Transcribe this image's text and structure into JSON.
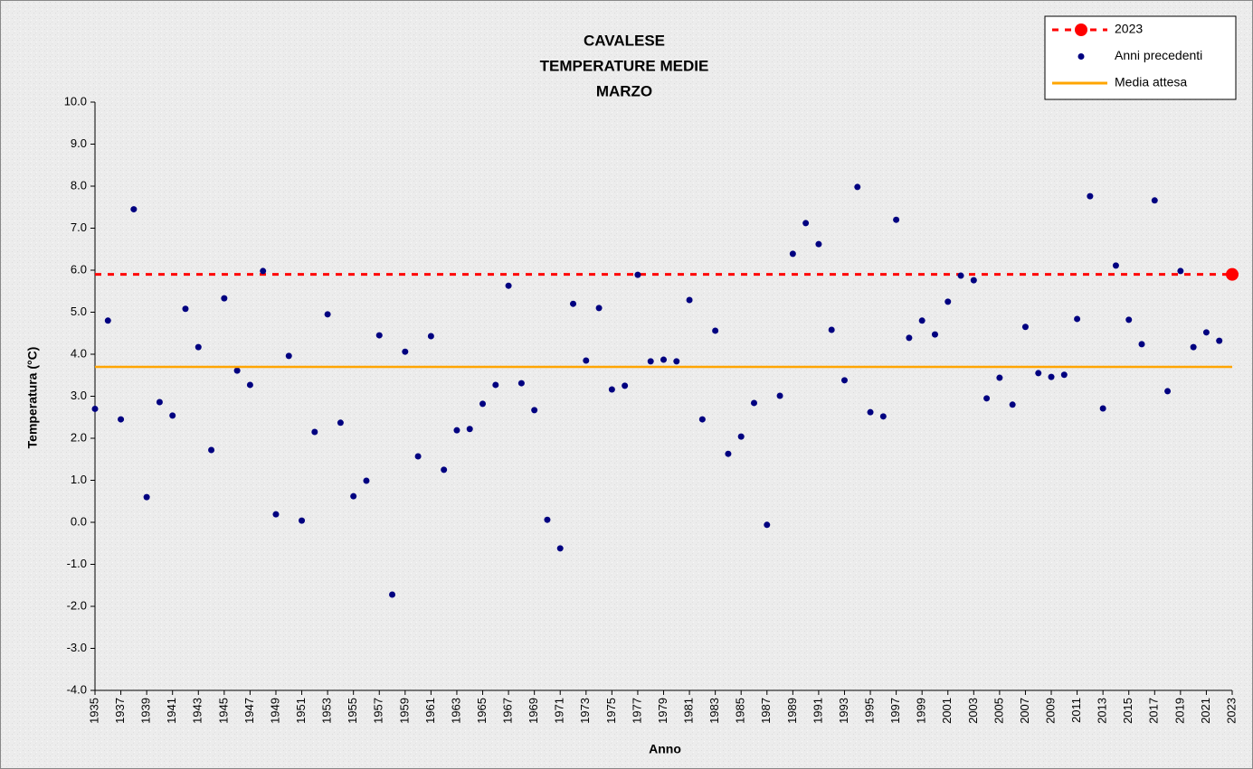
{
  "chart_data": {
    "type": "scatter",
    "title": [
      "CAVALESE",
      "TEMPERATURE MEDIE",
      "MARZO"
    ],
    "xlabel": "Anno",
    "ylabel": "Temperatura (°C)",
    "xlim": [
      1935,
      2023
    ],
    "xticks": [
      1935,
      1937,
      1939,
      1941,
      1943,
      1945,
      1947,
      1949,
      1951,
      1953,
      1955,
      1957,
      1959,
      1961,
      1963,
      1965,
      1967,
      1969,
      1971,
      1973,
      1975,
      1977,
      1979,
      1981,
      1983,
      1985,
      1987,
      1989,
      1991,
      1993,
      1995,
      1997,
      1999,
      2001,
      2003,
      2005,
      2007,
      2009,
      2011,
      2013,
      2015,
      2017,
      2019,
      2021,
      2023
    ],
    "ylim": [
      -4,
      10
    ],
    "yticks": [
      {
        "value": 10,
        "label": "10.0"
      },
      {
        "value": 9,
        "label": "9.0"
      },
      {
        "value": 8,
        "label": "8.0"
      },
      {
        "value": 7,
        "label": "7.0"
      },
      {
        "value": 6,
        "label": "6.0"
      },
      {
        "value": 5,
        "label": "5.0"
      },
      {
        "value": 4,
        "label": "4.0"
      },
      {
        "value": 3,
        "label": "3.0"
      },
      {
        "value": 2,
        "label": "2.0"
      },
      {
        "value": 1,
        "label": "1.0"
      },
      {
        "value": 0,
        "label": "0.0"
      },
      {
        "value": -1,
        "label": "-1.0"
      },
      {
        "value": -2,
        "label": "-2.0"
      },
      {
        "value": -3,
        "label": "-3.0"
      },
      {
        "value": -4,
        "label": "-4.0"
      }
    ],
    "legend": "upper right",
    "series": [
      {
        "name": "2023",
        "color": "#ff0000",
        "style": "point-dashed-hline",
        "x": [
          2023
        ],
        "values": [
          5.9
        ]
      },
      {
        "name": "Anni precedenti",
        "color": "#000080",
        "style": "points",
        "x": [
          1935,
          1936,
          1937,
          1938,
          1939,
          1940,
          1941,
          1942,
          1943,
          1944,
          1945,
          1946,
          1947,
          1948,
          1949,
          1950,
          1951,
          1952,
          1953,
          1954,
          1955,
          1956,
          1957,
          1958,
          1959,
          1960,
          1961,
          1962,
          1963,
          1964,
          1965,
          1966,
          1967,
          1968,
          1969,
          1970,
          1971,
          1972,
          1973,
          1974,
          1975,
          1976,
          1977,
          1978,
          1979,
          1980,
          1981,
          1982,
          1983,
          1984,
          1985,
          1986,
          1987,
          1988,
          1989,
          1990,
          1991,
          1992,
          1993,
          1994,
          1995,
          1996,
          1997,
          1998,
          1999,
          2000,
          2001,
          2002,
          2003,
          2004,
          2005,
          2006,
          2007,
          2008,
          2009,
          2010,
          2011,
          2012,
          2013,
          2014,
          2015,
          2016,
          2017,
          2018,
          2019,
          2020,
          2021,
          2022
        ],
        "values": [
          2.7,
          4.8,
          2.45,
          7.45,
          0.6,
          2.86,
          2.54,
          5.08,
          4.17,
          1.72,
          5.33,
          3.61,
          3.27,
          5.98,
          0.19,
          3.96,
          0.04,
          2.15,
          4.95,
          2.37,
          0.62,
          0.99,
          4.45,
          -1.72,
          4.06,
          1.57,
          4.43,
          1.25,
          2.19,
          2.22,
          2.82,
          3.27,
          5.63,
          3.31,
          2.67,
          0.06,
          -0.62,
          5.2,
          3.85,
          5.1,
          3.16,
          3.25,
          5.89,
          3.83,
          3.87,
          3.83,
          5.29,
          2.45,
          4.56,
          1.63,
          2.04,
          2.84,
          -0.06,
          3.01,
          6.39,
          7.12,
          6.62,
          4.58,
          3.38,
          7.98,
          2.62,
          2.52,
          7.2,
          4.39,
          4.8,
          4.47,
          5.25,
          5.87,
          5.76,
          2.95,
          3.44,
          2.8,
          4.65,
          3.55,
          3.46,
          3.51,
          4.84,
          7.76,
          2.71,
          6.11,
          4.82,
          4.24,
          7.66,
          3.12,
          5.98,
          4.17,
          4.52,
          4.32
        ]
      },
      {
        "name": "Media attesa",
        "color": "#ffa500",
        "style": "hline",
        "values": [
          3.7
        ]
      }
    ]
  }
}
